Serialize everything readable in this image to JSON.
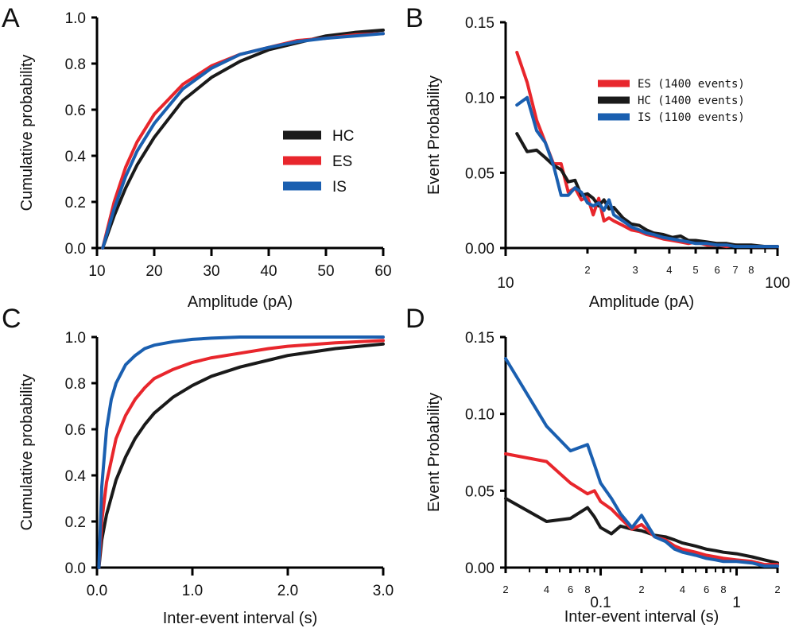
{
  "colors": {
    "HC": "#1a1a1a",
    "ES": "#e8262c",
    "IS": "#1a5fb0"
  },
  "chart_data": [
    {
      "panel": "A",
      "type": "line",
      "xlabel": "Amplitude (pA)",
      "ylabel": "Cumulative probability",
      "xscale": "linear",
      "xlim": [
        10,
        60
      ],
      "ylim": [
        0,
        1
      ],
      "xticks": [
        10,
        20,
        30,
        40,
        50,
        60
      ],
      "xtick_labels": [
        "10",
        "20",
        "30",
        "40",
        "50",
        "60"
      ],
      "yticks": [
        0,
        0.2,
        0.4,
        0.6,
        0.8,
        1.0
      ],
      "ytick_labels": [
        "0.0",
        "0.2",
        "0.4",
        "0.6",
        "0.8",
        "1.0"
      ],
      "legend": {
        "entries": [
          "HC",
          "ES",
          "IS"
        ],
        "placement": "center-right"
      },
      "series": [
        {
          "name": "HC",
          "x": [
            11,
            13,
            15,
            17,
            20,
            25,
            30,
            35,
            40,
            45,
            50,
            55,
            60
          ],
          "y": [
            0,
            0.14,
            0.26,
            0.36,
            0.48,
            0.64,
            0.74,
            0.81,
            0.86,
            0.89,
            0.92,
            0.935,
            0.945
          ]
        },
        {
          "name": "ES",
          "x": [
            11,
            13,
            15,
            17,
            20,
            25,
            30,
            35,
            40,
            45,
            50,
            55,
            60
          ],
          "y": [
            0,
            0.2,
            0.35,
            0.46,
            0.58,
            0.71,
            0.79,
            0.84,
            0.87,
            0.9,
            0.91,
            0.925,
            0.93
          ]
        },
        {
          "name": "IS",
          "x": [
            11,
            13,
            15,
            17,
            20,
            25,
            30,
            35,
            40,
            45,
            50,
            55,
            60
          ],
          "y": [
            0,
            0.17,
            0.31,
            0.42,
            0.54,
            0.69,
            0.78,
            0.84,
            0.87,
            0.895,
            0.91,
            0.92,
            0.93
          ]
        }
      ]
    },
    {
      "panel": "B",
      "type": "line",
      "xlabel": "Amplitude (pA)",
      "ylabel": "Event Probability",
      "xscale": "log",
      "xlim": [
        10,
        100
      ],
      "ylim": [
        0,
        0.15
      ],
      "xticks": [
        10,
        20,
        30,
        40,
        50,
        60,
        70,
        80,
        100
      ],
      "xtick_labels": [
        "10",
        "2",
        "3",
        "4",
        "5",
        "6",
        "7",
        "8",
        "100"
      ],
      "yticks": [
        0,
        0.05,
        0.1,
        0.15
      ],
      "ytick_labels": [
        "0.00",
        "0.05",
        "0.10",
        "0.15"
      ],
      "legend": {
        "entries": [
          "ES (1400 events)",
          "HC (1400 events)",
          "IS (1100 events)"
        ],
        "placement": "top-right"
      },
      "series": [
        {
          "name": "ES",
          "x": [
            11,
            12,
            13,
            14,
            15,
            16,
            17,
            18,
            19,
            20,
            21,
            22,
            23,
            24,
            25,
            27,
            29,
            31,
            33,
            35,
            38,
            41,
            44,
            47,
            50,
            55,
            60,
            65,
            70,
            80,
            90,
            100
          ],
          "y": [
            0.13,
            0.11,
            0.085,
            0.07,
            0.056,
            0.056,
            0.037,
            0.04,
            0.032,
            0.034,
            0.022,
            0.033,
            0.018,
            0.02,
            0.018,
            0.015,
            0.012,
            0.011,
            0.009,
            0.008,
            0.006,
            0.005,
            0.004,
            0.003,
            0.004,
            0.002,
            0.002,
            0.001,
            0.002,
            0.001,
            0.001,
            0.001
          ]
        },
        {
          "name": "HC",
          "x": [
            11,
            12,
            13,
            14,
            15,
            16,
            17,
            18,
            19,
            20,
            21,
            22,
            23,
            24,
            25,
            27,
            29,
            31,
            33,
            35,
            38,
            41,
            44,
            47,
            50,
            55,
            60,
            65,
            70,
            80,
            90,
            100
          ],
          "y": [
            0.076,
            0.064,
            0.065,
            0.06,
            0.055,
            0.052,
            0.044,
            0.045,
            0.035,
            0.036,
            0.033,
            0.028,
            0.032,
            0.026,
            0.027,
            0.02,
            0.016,
            0.015,
            0.012,
            0.01,
            0.009,
            0.007,
            0.008,
            0.005,
            0.005,
            0.004,
            0.003,
            0.003,
            0.002,
            0.002,
            0.001,
            0.001
          ]
        },
        {
          "name": "IS",
          "x": [
            11,
            12,
            13,
            14,
            15,
            16,
            17,
            18,
            19,
            20,
            21,
            22,
            23,
            24,
            25,
            27,
            29,
            31,
            33,
            35,
            38,
            41,
            44,
            47,
            50,
            55,
            60,
            65,
            70,
            80,
            90,
            100
          ],
          "y": [
            0.095,
            0.1,
            0.078,
            0.07,
            0.055,
            0.035,
            0.035,
            0.04,
            0.037,
            0.03,
            0.028,
            0.03,
            0.025,
            0.032,
            0.022,
            0.018,
            0.014,
            0.012,
            0.01,
            0.009,
            0.007,
            0.006,
            0.005,
            0.004,
            0.003,
            0.003,
            0.002,
            0.002,
            0.001,
            0.001,
            0.001,
            0.001
          ]
        }
      ]
    },
    {
      "panel": "C",
      "type": "line",
      "xlabel": "Inter-event interval (s)",
      "ylabel": "Cumulative probability",
      "xscale": "linear",
      "xlim": [
        0,
        3
      ],
      "ylim": [
        0,
        1
      ],
      "xticks": [
        0,
        1,
        2,
        3
      ],
      "xtick_labels": [
        "0.0",
        "1.0",
        "2.0",
        "3.0"
      ],
      "yticks": [
        0,
        0.2,
        0.4,
        0.6,
        0.8,
        1.0
      ],
      "ytick_labels": [
        "0.0",
        "0.2",
        "0.4",
        "0.6",
        "0.8",
        "1.0"
      ],
      "series": [
        {
          "name": "HC",
          "x": [
            0.02,
            0.05,
            0.1,
            0.2,
            0.3,
            0.4,
            0.5,
            0.6,
            0.8,
            1.0,
            1.2,
            1.5,
            1.8,
            2.0,
            2.5,
            3.0
          ],
          "y": [
            0,
            0.12,
            0.23,
            0.38,
            0.48,
            0.56,
            0.62,
            0.67,
            0.74,
            0.79,
            0.83,
            0.87,
            0.9,
            0.92,
            0.95,
            0.97
          ]
        },
        {
          "name": "ES",
          "x": [
            0.02,
            0.05,
            0.1,
            0.2,
            0.3,
            0.4,
            0.5,
            0.6,
            0.8,
            1.0,
            1.2,
            1.5,
            1.8,
            2.0,
            2.5,
            3.0
          ],
          "y": [
            0,
            0.2,
            0.37,
            0.56,
            0.66,
            0.73,
            0.78,
            0.82,
            0.86,
            0.89,
            0.91,
            0.93,
            0.95,
            0.96,
            0.975,
            0.985
          ]
        },
        {
          "name": "IS",
          "x": [
            0.02,
            0.05,
            0.1,
            0.15,
            0.2,
            0.3,
            0.4,
            0.5,
            0.6,
            0.8,
            1.0,
            1.2,
            1.5,
            1.8,
            2.0,
            3.0
          ],
          "y": [
            0,
            0.35,
            0.6,
            0.73,
            0.8,
            0.88,
            0.92,
            0.95,
            0.965,
            0.98,
            0.99,
            0.995,
            1.0,
            1.0,
            1.0,
            1.0
          ]
        }
      ]
    },
    {
      "panel": "D",
      "type": "line",
      "xlabel": "Inter-event interval (s)",
      "ylabel": "Event Probability",
      "xscale": "log",
      "xlim": [
        0.02,
        2
      ],
      "ylim": [
        0,
        0.15
      ],
      "xticks": [
        0.02,
        0.04,
        0.06,
        0.08,
        0.1,
        0.2,
        0.4,
        0.6,
        0.8,
        1,
        2
      ],
      "xtick_labels": [
        "2",
        "4",
        "6",
        "8",
        "0.1",
        "2",
        "4",
        "6",
        "8",
        "1",
        "2"
      ],
      "yticks": [
        0,
        0.05,
        0.1,
        0.15
      ],
      "ytick_labels": [
        "0.00",
        "0.05",
        "0.10",
        "0.15"
      ],
      "series": [
        {
          "name": "HC",
          "x": [
            0.02,
            0.04,
            0.06,
            0.08,
            0.09,
            0.1,
            0.12,
            0.14,
            0.17,
            0.2,
            0.25,
            0.3,
            0.35,
            0.4,
            0.5,
            0.6,
            0.7,
            0.8,
            1.0,
            1.3,
            1.6,
            2.0
          ],
          "y": [
            0.045,
            0.03,
            0.032,
            0.039,
            0.033,
            0.026,
            0.022,
            0.027,
            0.025,
            0.024,
            0.021,
            0.02,
            0.018,
            0.016,
            0.014,
            0.012,
            0.011,
            0.01,
            0.009,
            0.007,
            0.005,
            0.003
          ]
        },
        {
          "name": "ES",
          "x": [
            0.02,
            0.04,
            0.06,
            0.08,
            0.09,
            0.1,
            0.12,
            0.14,
            0.17,
            0.2,
            0.25,
            0.3,
            0.35,
            0.4,
            0.5,
            0.6,
            0.7,
            0.8,
            1.0,
            1.3,
            1.6,
            2.0
          ],
          "y": [
            0.074,
            0.069,
            0.055,
            0.048,
            0.05,
            0.043,
            0.038,
            0.032,
            0.025,
            0.028,
            0.02,
            0.018,
            0.014,
            0.012,
            0.01,
            0.008,
            0.007,
            0.006,
            0.005,
            0.004,
            0.002,
            0.002
          ]
        },
        {
          "name": "IS",
          "x": [
            0.02,
            0.04,
            0.06,
            0.08,
            0.09,
            0.1,
            0.12,
            0.14,
            0.17,
            0.2,
            0.25,
            0.3,
            0.35,
            0.4,
            0.5,
            0.6,
            0.7,
            0.8,
            1.0,
            1.3,
            1.6,
            2.0
          ],
          "y": [
            0.136,
            0.092,
            0.076,
            0.08,
            0.067,
            0.055,
            0.045,
            0.035,
            0.026,
            0.034,
            0.02,
            0.017,
            0.012,
            0.01,
            0.008,
            0.006,
            0.005,
            0.004,
            0.004,
            0.003,
            0.001,
            0.001
          ]
        }
      ]
    }
  ]
}
